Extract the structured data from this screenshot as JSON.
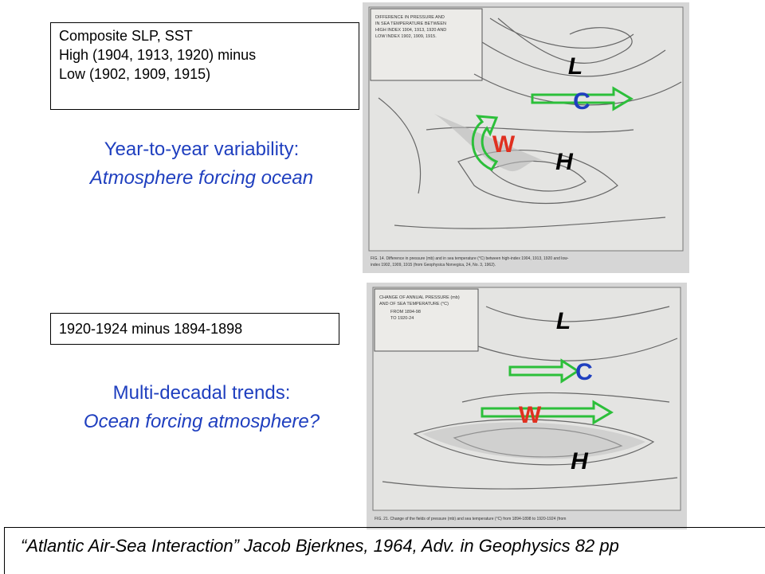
{
  "info_box_1": {
    "lines": [
      "Composite SLP, SST",
      "High (1904, 1913, 1920) minus",
      "Low (1902, 1909, 1915)"
    ]
  },
  "heading_1": {
    "line1": "Year-to-year variability:",
    "line2": "Atmosphere forcing ocean"
  },
  "map_1": {
    "header": [
      "DIFFERENCE IN PRESSURE AND",
      "IN SEA TEMPERATURE BETWEEN",
      "HIGH INDEX 1904, 1913, 1920 AND",
      "LOW INDEX 1902, 1909, 1915."
    ],
    "caption": [
      "FIG. 14. Difference in pressure (mb) and in sea temperature (°C) between high-index 1904, 1913, 1920 and low-",
      "index 1902, 1909, 1915 (from Geophysica Norvegica, 24, No. 3, 1962)."
    ],
    "labels": {
      "L": "L",
      "C": "C",
      "W": "W",
      "H": "H"
    }
  },
  "info_box_2": {
    "text": "1920-1924 minus 1894-1898"
  },
  "heading_2": {
    "line1": "Multi-decadal trends:",
    "line2": "Ocean forcing atmosphere?"
  },
  "map_2": {
    "header": [
      "CHANGE OF ANNUAL PRESSURE (mb)",
      "AND OF SEA TEMPERATURE (°C)",
      "FROM 1894-98",
      "TO 1920-24"
    ],
    "caption": [
      "FIG. 21. Change of the fields of pressure (mb) and sea temperature (°C) from 1894-1898 to 1920-1924 (from"
    ],
    "labels": {
      "L": "L",
      "C": "C",
      "W": "W",
      "H": "H"
    }
  },
  "citation": "“Atlantic Air-Sea Interaction” Jacob Bjerknes, 1964,  Adv. in Geophysics 82 pp"
}
